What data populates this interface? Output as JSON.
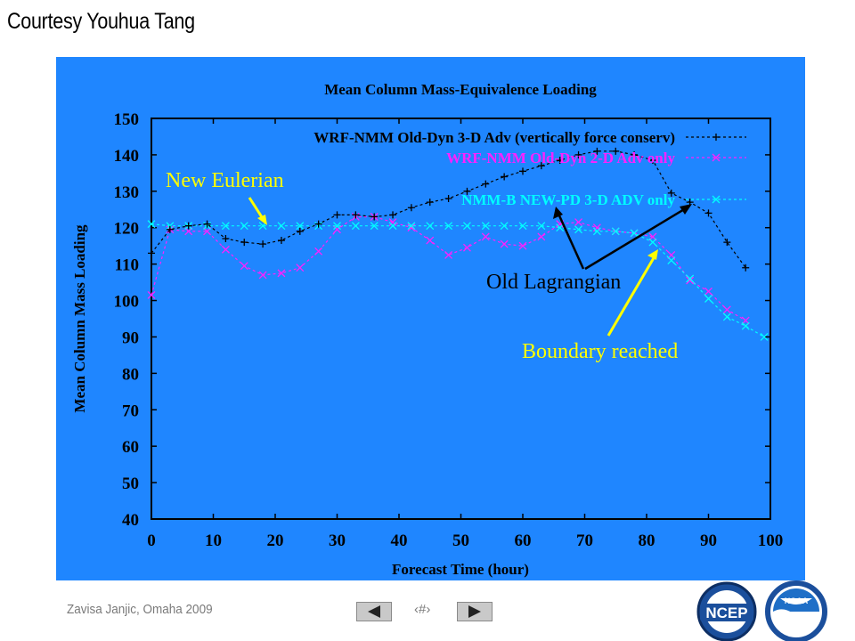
{
  "slide": {
    "title": "Courtesy Youhua Tang",
    "footer": "Zavisa Janjic, Omaha 2009",
    "page_number": "‹#›"
  },
  "logos": {
    "ncep": "NCEP",
    "noaa": "NOAA"
  },
  "colors": {
    "background": "#1f86ff",
    "series_old_3d": "#000000",
    "series_old_2d": "#ff21ff",
    "series_new": "#00ffff",
    "annotation_yellow": "#ffff00",
    "annotation_text": "#ffff00"
  },
  "annotations": {
    "new_eulerian": "New Eulerian",
    "old_lagrangian": "Old Lagrangian",
    "boundary_reached": "Boundary reached"
  },
  "chart_data": {
    "type": "line",
    "title": "Mean Column Mass-Equivalence Loading",
    "xlabel": "Forecast Time (hour)",
    "ylabel": "Mean Column Mass Loading",
    "xlim": [
      0,
      100
    ],
    "ylim": [
      40,
      150
    ],
    "xticks": [
      0,
      10,
      20,
      30,
      40,
      50,
      60,
      70,
      80,
      90,
      100
    ],
    "yticks": [
      40,
      50,
      60,
      70,
      80,
      90,
      100,
      110,
      120,
      130,
      140,
      150
    ],
    "grid": false,
    "legend_position": "top-right",
    "series": [
      {
        "name": "WRF-NMM Old-Dyn 3-D Adv (vertically force conserv)",
        "marker": "+",
        "x": [
          0,
          3,
          6,
          9,
          12,
          15,
          18,
          21,
          24,
          27,
          30,
          33,
          36,
          39,
          42,
          45,
          48,
          51,
          54,
          57,
          60,
          63,
          66,
          69,
          72,
          75,
          78,
          81,
          84,
          87,
          90,
          93,
          96
        ],
        "y": [
          113,
          119.5,
          120.5,
          121,
          117,
          116,
          115.5,
          116.5,
          119,
          121,
          123.5,
          123.5,
          123,
          123.5,
          125.5,
          127,
          128,
          130,
          132,
          134,
          135.5,
          137,
          138.5,
          140,
          141,
          141,
          140,
          138.5,
          129.5,
          127,
          124,
          116,
          109
        ]
      },
      {
        "name": "WRF-NMM Old-Dyn 2-D Adv only",
        "marker": "x",
        "x": [
          0,
          3,
          6,
          9,
          12,
          15,
          18,
          21,
          24,
          27,
          30,
          33,
          36,
          39,
          42,
          45,
          48,
          51,
          54,
          57,
          60,
          63,
          66,
          69,
          72,
          75,
          78,
          81,
          84,
          87,
          90,
          93,
          96
        ],
        "y": [
          101.5,
          119.5,
          119,
          119,
          114,
          109.5,
          107,
          107.5,
          109,
          113.5,
          119.5,
          123,
          123,
          121.5,
          120,
          116.5,
          112.5,
          114.5,
          117.5,
          115.5,
          115,
          117.5,
          121,
          121.5,
          120,
          119,
          118.5,
          117.5,
          112.5,
          105.5,
          102.5,
          97.5,
          94.5
        ]
      },
      {
        "name": "NMM-B NEW-PD 3-D ADV only",
        "marker": "x",
        "x": [
          0,
          3,
          6,
          9,
          12,
          15,
          18,
          21,
          24,
          27,
          30,
          33,
          36,
          39,
          42,
          45,
          48,
          51,
          54,
          57,
          60,
          63,
          66,
          69,
          72,
          75,
          78,
          81,
          84,
          87,
          90,
          93,
          96,
          99
        ],
        "y": [
          121,
          120.5,
          120.5,
          120.5,
          120.5,
          120.5,
          120.5,
          120.5,
          120.5,
          120.5,
          120.5,
          120.5,
          120.5,
          120.5,
          120.5,
          120.5,
          120.5,
          120.5,
          120.5,
          120.5,
          120.5,
          120.5,
          120,
          119.5,
          119,
          119,
          118.5,
          116,
          111,
          106,
          100.5,
          95.5,
          93,
          90
        ]
      }
    ]
  }
}
